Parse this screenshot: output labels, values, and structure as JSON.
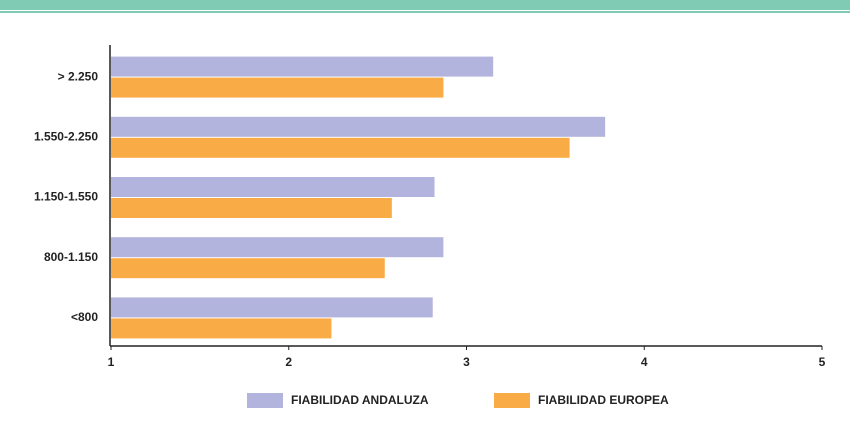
{
  "chart_data": {
    "type": "bar",
    "orientation": "horizontal",
    "categories": [
      "> 2.250",
      "1.550-2.250",
      "1.150-1.550",
      "800-1.150",
      "<800"
    ],
    "series": [
      {
        "name": "FIABILIDAD ANDALUZA",
        "color": "#b3b4dd",
        "values": [
          3.15,
          3.78,
          2.82,
          2.87,
          2.81
        ]
      },
      {
        "name": "FIABILIDAD EUROPEA",
        "color": "#f9ab45",
        "values": [
          2.87,
          3.58,
          2.58,
          2.54,
          2.24
        ]
      }
    ],
    "xlim": [
      1,
      5
    ],
    "xticks": [
      1,
      2,
      3,
      4,
      5
    ],
    "legend": "bottom"
  }
}
